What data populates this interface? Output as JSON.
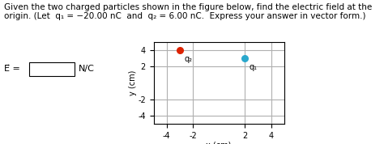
{
  "chart_data": {
    "type": "scatter",
    "title": "Given the two charged particles shown in the figure below, find the electric field at the origin. (Let  q₁ = −20.00 nC  and  q₂ = 6.00 nC.  Express your answer in vector form.)",
    "x_label": "x (cm)",
    "y_label": "y (cm)",
    "xlim": [
      -5,
      5
    ],
    "ylim": [
      -5,
      5
    ],
    "xticks": [
      -4,
      -2,
      2,
      4
    ],
    "yticks": [
      -4,
      -2,
      2,
      4
    ],
    "grid": true,
    "series": [
      {
        "color": "#2aa8cc",
        "x": [
          2
        ],
        "values": [
          3
        ]
      },
      {
        "color": "#dd2200",
        "x": [
          -3
        ],
        "values": [
          4
        ]
      }
    ],
    "annotations": [
      {
        "text": "q₁",
        "x": 2,
        "y": 3
      },
      {
        "text": "q₂",
        "x": -3,
        "y": 4
      }
    ],
    "answer_line": [
      "E⃗ =",
      "N/C"
    ]
  }
}
